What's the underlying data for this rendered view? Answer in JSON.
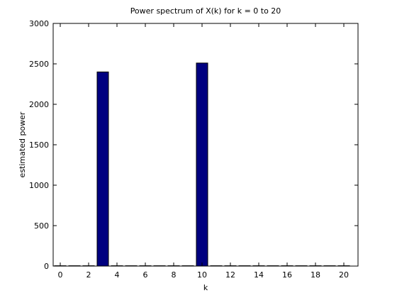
{
  "chart_data": {
    "type": "bar",
    "title": "Power spectrum of X(k) for k = 0 to 20",
    "xlabel": "k",
    "ylabel": "estimated power",
    "x": [
      0,
      1,
      2,
      3,
      4,
      5,
      6,
      7,
      8,
      9,
      10,
      11,
      12,
      13,
      14,
      15,
      16,
      17,
      18,
      19,
      20
    ],
    "values": [
      4,
      4,
      4,
      2400,
      4,
      4,
      4,
      4,
      4,
      4,
      2510,
      4,
      4,
      4,
      4,
      4,
      4,
      4,
      4,
      4,
      4
    ],
    "color": "#000080",
    "xlim": [
      -0.5,
      21
    ],
    "xticks": [
      0,
      2,
      4,
      6,
      8,
      10,
      12,
      14,
      16,
      18,
      20
    ],
    "ylim": [
      0,
      3000
    ],
    "yticks": [
      0,
      500,
      1000,
      1500,
      2000,
      2500,
      3000
    ]
  }
}
